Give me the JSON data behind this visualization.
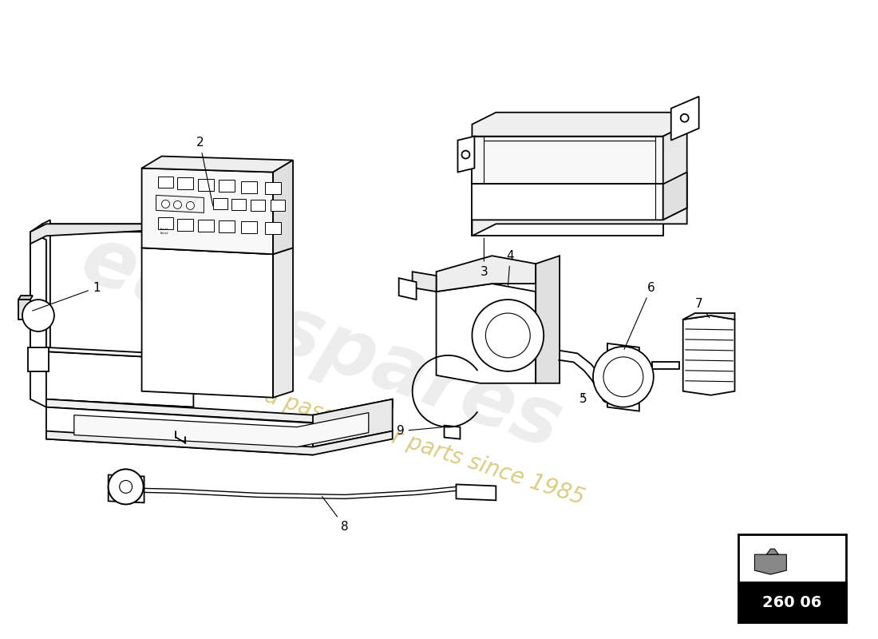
{
  "bg_color": "#ffffff",
  "line_color": "#000000",
  "watermark_text": "eurospares",
  "watermark_subtext": "a passion for parts since 1985",
  "part_number": "260 06",
  "lw": 1.3
}
